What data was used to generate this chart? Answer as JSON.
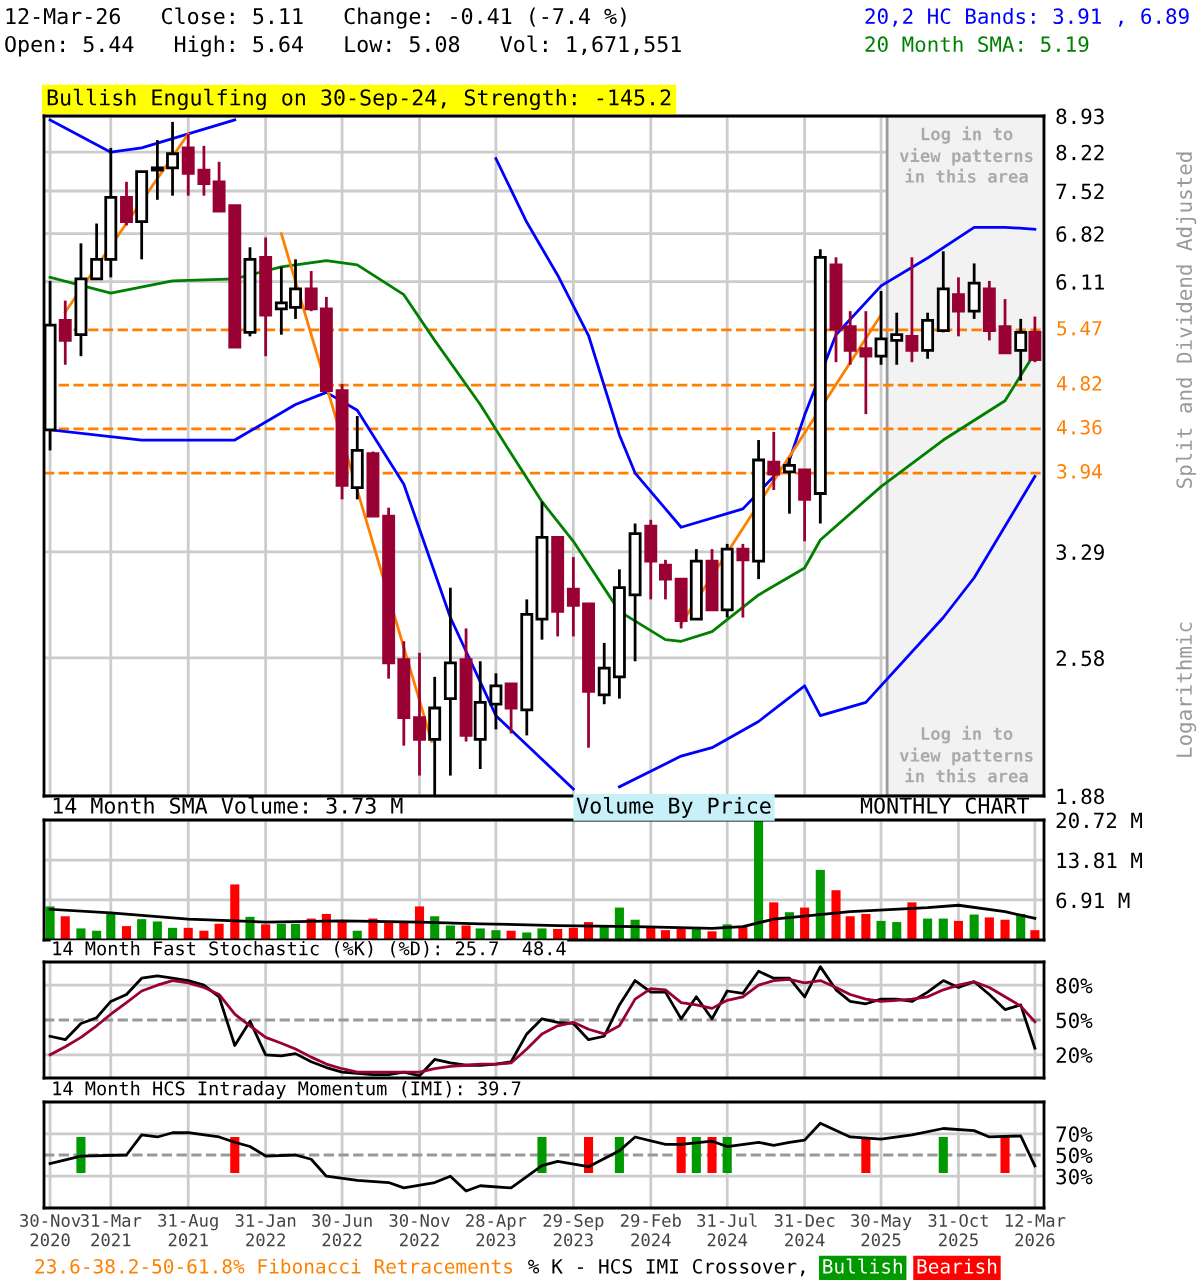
{
  "chart_data": [
    {
      "type": "candlestick",
      "title": "12-Mar-26   Close: 5.11   Change: -0.41 (-7.4 %)",
      "subtitle": "Open: 5.44   High: 5.64   Low: 5.08   Vol: 1,671,551",
      "ylabel": "Split and Dividend Adjusted",
      "annotations": [
        "Bullish Engulfing on 30-Sep-24, Strength: -145.2",
        "Logarithmic",
        "Log in to\nview patterns\nin this area",
        "23.6-38.2-50-61.8% Fibonacci Retracements"
      ],
      "x": [
        "2020-11",
        "2020-12",
        "2021-01",
        "2021-02",
        "2021-03",
        "2021-04",
        "2021-05",
        "2021-06",
        "2021-07",
        "2021-08",
        "2021-09",
        "2021-10",
        "2021-11",
        "2021-12",
        "2022-01",
        "2022-02",
        "2022-03",
        "2022-04",
        "2022-05",
        "2022-06",
        "2022-07",
        "2022-08",
        "2022-09",
        "2022-10",
        "2022-11",
        "2022-12",
        "2023-01",
        "2023-02",
        "2023-03",
        "2023-04",
        "2023-05",
        "2023-06",
        "2023-07",
        "2023-08",
        "2023-09",
        "2023-10",
        "2023-11",
        "2023-12",
        "2024-01",
        "2024-02",
        "2024-03",
        "2024-04",
        "2024-05",
        "2024-06",
        "2024-07",
        "2024-08",
        "2024-09",
        "2024-10",
        "2024-11",
        "2024-12",
        "2025-01",
        "2025-02",
        "2025-03",
        "2025-04",
        "2025-05",
        "2025-06",
        "2025-07",
        "2025-08",
        "2025-09",
        "2025-10",
        "2025-11",
        "2025-12",
        "2026-01",
        "2026-02",
        "2026-03"
      ],
      "ohlc": [
        [
          4.35,
          6.12,
          4.15,
          5.53
        ],
        [
          5.59,
          5.85,
          5.05,
          5.34
        ],
        [
          5.41,
          6.67,
          5.15,
          6.15
        ],
        [
          6.15,
          6.98,
          6.15,
          6.43
        ],
        [
          6.43,
          8.3,
          6.17,
          7.41
        ],
        [
          7.41,
          7.68,
          6.95,
          7.01
        ],
        [
          7.01,
          7.86,
          6.43,
          7.86
        ],
        [
          7.89,
          8.45,
          7.37,
          7.93
        ],
        [
          7.93,
          8.81,
          7.44,
          8.19
        ],
        [
          8.3,
          8.57,
          7.44,
          7.83
        ],
        [
          7.89,
          8.34,
          7.44,
          7.65
        ],
        [
          7.68,
          8.04,
          7.18,
          7.18
        ],
        [
          7.27,
          7.27,
          5.26,
          5.26
        ],
        [
          5.44,
          6.61,
          5.39,
          6.43
        ],
        [
          6.46,
          6.76,
          5.15,
          5.66
        ],
        [
          5.74,
          6.32,
          5.41,
          5.82
        ],
        [
          5.76,
          6.43,
          5.61,
          6.01
        ],
        [
          6.01,
          6.26,
          5.71,
          5.74
        ],
        [
          5.74,
          5.9,
          4.76,
          4.76
        ],
        [
          4.76,
          4.83,
          3.71,
          3.83
        ],
        [
          3.81,
          4.49,
          3.71,
          4.15
        ],
        [
          4.12,
          4.14,
          3.57,
          3.57
        ],
        [
          3.57,
          3.64,
          2.46,
          2.55
        ],
        [
          2.57,
          2.68,
          2.11,
          2.25
        ],
        [
          2.25,
          2.61,
          1.97,
          2.14
        ],
        [
          2.14,
          2.47,
          1.88,
          2.3
        ],
        [
          2.35,
          3.03,
          1.97,
          2.55
        ],
        [
          2.57,
          2.76,
          2.13,
          2.16
        ],
        [
          2.14,
          2.56,
          2.0,
          2.33
        ],
        [
          2.32,
          2.49,
          2.19,
          2.42
        ],
        [
          2.43,
          2.43,
          2.17,
          2.3
        ],
        [
          2.29,
          2.95,
          2.16,
          2.85
        ],
        [
          2.82,
          3.69,
          2.69,
          3.4
        ],
        [
          3.4,
          3.4,
          2.71,
          2.87
        ],
        [
          3.02,
          3.25,
          2.71,
          2.91
        ],
        [
          2.92,
          2.92,
          2.1,
          2.39
        ],
        [
          2.37,
          2.67,
          2.32,
          2.52
        ],
        [
          2.47,
          3.16,
          2.35,
          3.03
        ],
        [
          2.98,
          3.51,
          2.56,
          3.43
        ],
        [
          3.49,
          3.54,
          2.95,
          3.22
        ],
        [
          3.19,
          3.23,
          2.95,
          3.09
        ],
        [
          3.09,
          3.09,
          2.76,
          2.81
        ],
        [
          2.82,
          3.31,
          2.82,
          3.22
        ],
        [
          3.22,
          3.31,
          2.88,
          2.88
        ],
        [
          2.88,
          3.35,
          2.83,
          3.31
        ],
        [
          3.31,
          3.35,
          2.83,
          3.23
        ],
        [
          3.22,
          4.25,
          3.09,
          4.06
        ],
        [
          4.04,
          4.33,
          3.79,
          3.93
        ],
        [
          3.95,
          4.08,
          3.59,
          4.01
        ],
        [
          3.97,
          3.97,
          3.37,
          3.71
        ],
        [
          3.76,
          6.58,
          3.51,
          6.46
        ],
        [
          6.35,
          6.46,
          5.08,
          5.48
        ],
        [
          5.51,
          5.71,
          5.05,
          5.22
        ],
        [
          5.24,
          5.71,
          4.51,
          5.15
        ],
        [
          5.15,
          5.98,
          5.05,
          5.36
        ],
        [
          5.34,
          5.69,
          5.05,
          5.41
        ],
        [
          5.39,
          6.46,
          5.08,
          5.22
        ],
        [
          5.22,
          5.69,
          5.12,
          5.59
        ],
        [
          5.46,
          6.55,
          5.44,
          6.01
        ],
        [
          5.93,
          6.17,
          5.39,
          5.71
        ],
        [
          5.71,
          6.37,
          5.61,
          6.09
        ],
        [
          6.01,
          6.12,
          5.34,
          5.46
        ],
        [
          5.51,
          5.87,
          5.19,
          5.19
        ],
        [
          5.22,
          5.61,
          4.87,
          5.44
        ],
        [
          5.44,
          5.64,
          5.08,
          5.11
        ]
      ],
      "colors": [
        "#ffffff",
        "#990033",
        "#ffffff",
        "#ffffff",
        "#ffffff",
        "#990033",
        "#ffffff",
        "#ffffff",
        "#ffffff",
        "#990033",
        "#990033",
        "#990033",
        "#990033",
        "#ffffff",
        "#990033",
        "#ffffff",
        "#ffffff",
        "#990033",
        "#990033",
        "#990033",
        "#ffffff",
        "#990033",
        "#990033",
        "#990033",
        "#990033",
        "#ffffff",
        "#ffffff",
        "#990033",
        "#ffffff",
        "#ffffff",
        "#990033",
        "#ffffff",
        "#ffffff",
        "#990033",
        "#990033",
        "#990033",
        "#ffffff",
        "#ffffff",
        "#ffffff",
        "#990033",
        "#990033",
        "#990033",
        "#ffffff",
        "#990033",
        "#ffffff",
        "#990033",
        "#ffffff",
        "#990033",
        "#ffffff",
        "#990033",
        "#ffffff",
        "#990033",
        "#990033",
        "#990033",
        "#ffffff",
        "#ffffff",
        "#990033",
        "#ffffff",
        "#ffffff",
        "#990033",
        "#ffffff",
        "#990033",
        "#990033",
        "#ffffff",
        "#990033"
      ],
      "series": [
        {
          "type": "line",
          "name": "20,2 HC Bands: 3.91 , 6.89",
          "color": "#0000ff",
          "x": [
            "2020-11",
            "2021-03",
            "2021-05",
            "2021-11",
            "2021-12",
            "2023-02",
            "2023-04",
            "2023-06",
            "2023-08",
            "2023-10",
            "2023-12",
            "2024-01",
            "2024-04",
            "2024-08",
            "2024-11",
            "2024-12",
            "2025-02",
            "2025-05",
            "2025-08",
            "2025-11",
            "2026-01",
            "2026-03"
          ],
          "values": [
            8.85,
            8.22,
            8.3,
            8.85,
            null,
            null,
            8.1,
            7.0,
            6.2,
            5.4,
            4.3,
            3.94,
            3.48,
            3.63,
            4.06,
            4.5,
            5.41,
            6.05,
            6.45,
            6.92,
            6.92,
            6.89
          ]
        },
        {
          "type": "line",
          "color": "#0000ff",
          "x": [
            "2020-11",
            "2021-05",
            "2021-11",
            "2022-03",
            "2022-05",
            "2022-07",
            "2022-10",
            "2023-01",
            "2023-04",
            "2023-09",
            "2023-10",
            "2023-11",
            "2023-12",
            "2024-04",
            "2024-06",
            "2024-09",
            "2024-12",
            "2025-01",
            "2025-04",
            "2025-09",
            "2025-11",
            "2026-03"
          ],
          "values": [
            4.35,
            4.25,
            4.25,
            4.61,
            4.74,
            4.55,
            3.84,
            2.83,
            2.26,
            1.91,
            null,
            null,
            1.92,
            2.06,
            2.1,
            2.23,
            2.42,
            2.26,
            2.33,
            2.83,
            3.1,
            3.91
          ]
        },
        {
          "type": "line",
          "name": "20 Month SMA: 5.19",
          "color": "#008000",
          "x": [
            "2020-11",
            "2021-03",
            "2021-07",
            "2021-11",
            "2022-02",
            "2022-05",
            "2022-07",
            "2022-10",
            "2022-12",
            "2023-03",
            "2023-05",
            "2023-07",
            "2023-09",
            "2023-12",
            "2024-03",
            "2024-04",
            "2024-06",
            "2024-09",
            "2024-12",
            "2025-01",
            "2025-05",
            "2025-09",
            "2026-01",
            "2026-03"
          ],
          "values": [
            6.17,
            5.95,
            6.12,
            6.15,
            6.32,
            6.41,
            6.35,
            5.93,
            5.34,
            4.61,
            4.12,
            3.69,
            3.37,
            2.87,
            2.69,
            2.68,
            2.74,
            2.98,
            3.17,
            3.38,
            3.82,
            4.25,
            4.65,
            5.19
          ]
        },
        {
          "type": "line",
          "color": "#ff8000",
          "x": [
            "2020-12",
            "2021-08"
          ],
          "values": [
            5.7,
            8.57
          ]
        },
        {
          "type": "line",
          "color": "#ff8000",
          "x": [
            "2022-02",
            "2022-11-25"
          ],
          "values": [
            6.82,
            2.13
          ]
        },
        {
          "type": "line",
          "color": "#ff8000",
          "x": [
            "2024-04",
            "2025-05"
          ],
          "values": [
            2.79,
            5.66
          ]
        }
      ],
      "ref_lines": [
        {
          "axis": "y",
          "value": 5.47,
          "label": "5.47",
          "color": "#ff8000",
          "line_style": "dashed"
        },
        {
          "axis": "y",
          "value": 4.82,
          "label": "4.82",
          "color": "#ff8000",
          "line_style": "dashed"
        },
        {
          "axis": "y",
          "value": 4.36,
          "label": "4.36",
          "color": "#ff8000",
          "line_style": "dashed"
        },
        {
          "axis": "y",
          "value": 3.94,
          "label": "3.94",
          "color": "#ff8000",
          "line_style": "dashed"
        }
      ],
      "bands": [
        {
          "axis": "x",
          "from": "2025-05-13",
          "to": "2026-03-19",
          "label": "Log in to\nview patterns\nin this area",
          "color": "#f2f2f2"
        }
      ],
      "log": true,
      "ylim": [
        1.88,
        8.93
      ],
      "yticks": [
        1.88,
        2.58,
        3.29,
        6.11,
        6.82,
        7.52,
        8.22,
        8.93
      ],
      "xlim": [
        "2020-10-20",
        "2026-03-19"
      ],
      "xticks": [
        {
          "value": "2020-11",
          "label": null
        },
        {
          "value": "2021-03",
          "label": null
        },
        {
          "value": "2021-08",
          "label": null
        },
        {
          "value": "2022-01",
          "label": null
        },
        {
          "value": "2022-06",
          "label": null
        },
        {
          "value": "2022-11",
          "label": null
        },
        {
          "value": "2023-04",
          "label": null
        },
        {
          "value": "2023-09",
          "label": null
        },
        {
          "value": "2024-02",
          "label": null
        },
        {
          "value": "2024-07",
          "label": null
        },
        {
          "value": "2024-12",
          "label": null
        },
        {
          "value": "2025-05",
          "label": null
        },
        {
          "value": "2025-10",
          "label": null
        },
        {
          "value": "2026-03",
          "label": null
        }
      ],
      "tick_labels": "y",
      "grid": true,
      "legend": "top right"
    },
    {
      "type": "bar",
      "annotations": [
        "Volume By Price",
        "MONTHLY CHART"
      ],
      "x": [
        "2020-11",
        "2020-12",
        "2021-01",
        "2021-02",
        "2021-03",
        "2021-04",
        "2021-05",
        "2021-06",
        "2021-07",
        "2021-08",
        "2021-09",
        "2021-10",
        "2021-11",
        "2021-12",
        "2022-01",
        "2022-02",
        "2022-03",
        "2022-04",
        "2022-05",
        "2022-06",
        "2022-07",
        "2022-08",
        "2022-09",
        "2022-10",
        "2022-11",
        "2022-12",
        "2023-01",
        "2023-02",
        "2023-03",
        "2023-04",
        "2023-05",
        "2023-06",
        "2023-07",
        "2023-08",
        "2023-09",
        "2023-10",
        "2023-11",
        "2023-12",
        "2024-01",
        "2024-02",
        "2024-03",
        "2024-04",
        "2024-05",
        "2024-06",
        "2024-07",
        "2024-08",
        "2024-09",
        "2024-10",
        "2024-11",
        "2024-12",
        "2025-01",
        "2025-02",
        "2025-03",
        "2025-04",
        "2025-05",
        "2025-06",
        "2025-07",
        "2025-08",
        "2025-09",
        "2025-10",
        "2025-11",
        "2025-12",
        "2026-01",
        "2026-02",
        "2026-03"
      ],
      "series": [
        {
          "type": "bar",
          "values": [
            5.8,
            4.1,
            2.0,
            1.6,
            4.8,
            2.4,
            3.6,
            3.2,
            2.1,
            2.1,
            1.6,
            2.8,
            9.6,
            4.0,
            2.7,
            2.8,
            2.8,
            3.7,
            4.5,
            3.2,
            1.6,
            3.7,
            3.2,
            3.2,
            5.8,
            4.1,
            2.5,
            2.5,
            2.0,
            1.7,
            1.6,
            1.3,
            2.0,
            1.9,
            2.1,
            3.1,
            2.5,
            5.6,
            3.5,
            2.3,
            1.7,
            2.1,
            2.1,
            1.5,
            2.7,
            2.4,
            20.7,
            6.5,
            4.8,
            5.6,
            12.1,
            8.6,
            4.1,
            4.5,
            3.3,
            3.1,
            6.5,
            3.7,
            3.7,
            3.3,
            4.4,
            3.9,
            3.5,
            4.5,
            1.7
          ],
          "colors": [
            "#009900",
            "#ff0000",
            "#009900",
            "#009900",
            "#009900",
            "#ff0000",
            "#009900",
            "#009900",
            "#009900",
            "#ff0000",
            "#ff0000",
            "#ff0000",
            "#ff0000",
            "#009900",
            "#ff0000",
            "#009900",
            "#009900",
            "#ff0000",
            "#ff0000",
            "#ff0000",
            "#009900",
            "#ff0000",
            "#ff0000",
            "#ff0000",
            "#ff0000",
            "#009900",
            "#009900",
            "#ff0000",
            "#009900",
            "#009900",
            "#ff0000",
            "#009900",
            "#009900",
            "#ff0000",
            "#ff0000",
            "#ff0000",
            "#009900",
            "#009900",
            "#009900",
            "#ff0000",
            "#ff0000",
            "#ff0000",
            "#009900",
            "#ff0000",
            "#009900",
            "#ff0000",
            "#009900",
            "#ff0000",
            "#009900",
            "#ff0000",
            "#009900",
            "#ff0000",
            "#ff0000",
            "#ff0000",
            "#009900",
            "#009900",
            "#ff0000",
            "#009900",
            "#009900",
            "#ff0000",
            "#009900",
            "#ff0000",
            "#ff0000",
            "#009900",
            "#ff0000"
          ]
        },
        {
          "type": "line",
          "name": "14 Month SMA Volume: 3.73 M",
          "color": "#000000",
          "x": [
            "2020-11",
            "2021-03",
            "2021-08",
            "2022-01",
            "2022-06",
            "2022-11",
            "2023-03",
            "2023-08",
            "2024-01",
            "2024-06",
            "2024-08",
            "2024-10",
            "2025-03",
            "2025-08",
            "2025-10",
            "2026-01",
            "2026-03"
          ],
          "values": [
            5.3,
            4.7,
            3.6,
            3.1,
            3.3,
            3.1,
            2.8,
            2.5,
            2.3,
            2.0,
            2.3,
            3.6,
            4.9,
            5.6,
            6.0,
            4.9,
            3.73
          ]
        }
      ],
      "ylim": [
        0,
        20.72
      ],
      "yticks": [
        {
          "value": 6.91,
          "label": "6.91 M"
        },
        {
          "value": 13.81,
          "label": "13.81 M"
        },
        {
          "value": 20.72,
          "label": "20.72 M"
        }
      ],
      "xlim": [
        "2020-10-20",
        "2026-03-19"
      ],
      "xticks": [
        {
          "value": "2020-11",
          "label": null
        },
        {
          "value": "2021-03",
          "label": null
        },
        {
          "value": "2021-08",
          "label": null
        },
        {
          "value": "2022-01",
          "label": null
        },
        {
          "value": "2022-06",
          "label": null
        },
        {
          "value": "2022-11",
          "label": null
        },
        {
          "value": "2023-04",
          "label": null
        },
        {
          "value": "2023-09",
          "label": null
        },
        {
          "value": "2024-02",
          "label": null
        },
        {
          "value": "2024-07",
          "label": null
        },
        {
          "value": "2024-12",
          "label": null
        },
        {
          "value": "2025-05",
          "label": null
        },
        {
          "value": "2025-10",
          "label": null
        },
        {
          "value": "2026-03",
          "label": null
        }
      ],
      "tick_labels": "y",
      "grid": true,
      "legend": "top left"
    },
    {
      "type": "line",
      "title": "14 Month Fast Stochastic (%K) (%D): 25.7  48.4",
      "x": [
        "2020-11",
        "2020-12",
        "2021-01",
        "2021-02",
        "2021-03",
        "2021-04",
        "2021-05",
        "2021-06",
        "2021-07",
        "2021-08",
        "2021-09",
        "2021-10",
        "2021-11",
        "2021-12",
        "2022-01",
        "2022-02",
        "2022-03",
        "2022-04",
        "2022-05",
        "2022-06",
        "2022-07",
        "2022-08",
        "2022-09",
        "2022-10",
        "2022-11",
        "2022-12",
        "2023-01",
        "2023-02",
        "2023-03",
        "2023-04",
        "2023-05",
        "2023-06",
        "2023-07",
        "2023-08",
        "2023-09",
        "2023-10",
        "2023-11",
        "2023-12",
        "2024-01",
        "2024-02",
        "2024-03",
        "2024-04",
        "2024-05",
        "2024-06",
        "2024-07",
        "2024-08",
        "2024-09",
        "2024-10",
        "2024-11",
        "2024-12",
        "2025-01",
        "2025-02",
        "2025-03",
        "2025-04",
        "2025-05",
        "2025-06",
        "2025-07",
        "2025-08",
        "2025-09",
        "2025-10",
        "2025-11",
        "2025-12",
        "2026-01",
        "2026-02",
        "2026-03"
      ],
      "series": [
        {
          "type": "line",
          "color": "#000000",
          "values": [
            36,
            33,
            47,
            52,
            66,
            72,
            86,
            88,
            86,
            84,
            80,
            70,
            28,
            49,
            20,
            19,
            21,
            14,
            9,
            5,
            4,
            3,
            3,
            5,
            2,
            16,
            13,
            11,
            11,
            12,
            14,
            38,
            51,
            48,
            47,
            33,
            36,
            63,
            84,
            74,
            74,
            51,
            70,
            51,
            75,
            73,
            92,
            86,
            86,
            70,
            96,
            76,
            66,
            64,
            68,
            68,
            66,
            74,
            84,
            78,
            83,
            72,
            59,
            63,
            25.7
          ]
        },
        {
          "type": "line",
          "color": "#990033",
          "values": [
            20,
            27,
            35,
            45,
            55,
            65,
            75,
            80,
            84,
            82,
            78,
            72,
            55,
            45,
            35,
            30,
            25,
            18,
            12,
            8,
            5,
            5,
            5,
            5,
            5,
            8,
            10,
            11,
            12,
            12,
            13,
            25,
            38,
            45,
            48,
            42,
            38,
            45,
            68,
            77,
            76,
            65,
            63,
            60,
            67,
            70,
            80,
            84,
            85,
            82,
            84,
            78,
            72,
            68,
            66,
            67,
            68,
            70,
            76,
            80,
            83,
            78,
            70,
            62,
            48.4
          ]
        }
      ],
      "ref_lines": [
        {
          "axis": "y",
          "value": 50,
          "color": "#999999",
          "line_style": "dashed"
        }
      ],
      "ylim": [
        0,
        100
      ],
      "yticks": [
        {
          "value": 20,
          "label": "20%"
        },
        {
          "value": 50,
          "label": "50%"
        },
        {
          "value": 80,
          "label": "80%"
        }
      ],
      "xlim": [
        "2020-10-20",
        "2026-03-19"
      ],
      "xticks": [
        {
          "value": "2020-11",
          "label": null
        },
        {
          "value": "2021-03",
          "label": null
        },
        {
          "value": "2021-08",
          "label": null
        },
        {
          "value": "2022-01",
          "label": null
        },
        {
          "value": "2022-06",
          "label": null
        },
        {
          "value": "2022-11",
          "label": null
        },
        {
          "value": "2023-04",
          "label": null
        },
        {
          "value": "2023-09",
          "label": null
        },
        {
          "value": "2024-02",
          "label": null
        },
        {
          "value": "2024-07",
          "label": null
        },
        {
          "value": "2024-12",
          "label": null
        },
        {
          "value": "2025-05",
          "label": null
        },
        {
          "value": "2025-10",
          "label": null
        },
        {
          "value": "2026-03",
          "label": null
        }
      ],
      "tick_labels": "y",
      "grid": true
    },
    {
      "type": "line",
      "title": "14 Month HCS Intraday Momentum (IMI): 39.7",
      "legend_title": "% K - HCS IMI Crossover,",
      "series": [
        {
          "type": "line",
          "color": "#000000",
          "x": [
            "2020-11",
            "2021-01",
            "2021-04",
            "2021-05",
            "2021-06",
            "2021-07",
            "2021-08",
            "2021-10",
            "2021-11",
            "2021-12",
            "2022-01",
            "2022-03",
            "2022-04",
            "2022-05",
            "2022-07",
            "2022-09",
            "2022-10",
            "2022-12",
            "2023-01",
            "2023-02",
            "2023-03",
            "2023-05",
            "2023-07",
            "2023-08",
            "2023-10",
            "2023-12",
            "2024-01",
            "2024-03",
            "2024-04",
            "2024-06",
            "2024-07",
            "2024-09",
            "2024-10",
            "2024-11",
            "2024-12",
            "2025-01",
            "2025-03",
            "2025-05",
            "2025-07",
            "2025-09",
            "2025-11",
            "2025-12",
            "2026-02",
            "2026-03"
          ],
          "values": [
            42,
            49,
            50,
            69,
            67,
            71,
            71,
            67,
            62,
            58,
            49,
            50,
            46,
            30,
            26,
            24,
            19,
            24,
            30,
            16,
            21,
            19,
            40,
            44,
            39,
            54,
            67,
            60,
            60,
            63,
            58,
            62,
            59,
            62,
            64,
            80,
            67,
            65,
            69,
            75,
            73,
            67,
            68,
            39.7
          ]
        },
        {
          "type": "bar",
          "name": "Bullish",
          "color": "#009900",
          "x": [
            "2021-01",
            "2023-07",
            "2023-12",
            "2024-05",
            "2024-07",
            "2025-09"
          ],
          "base": [
            33,
            33,
            33,
            33,
            33,
            33
          ],
          "values": [
            34,
            34,
            34,
            34,
            34,
            34
          ]
        },
        {
          "type": "bar",
          "name": "Bearish",
          "color": "#ff0000",
          "x": [
            "2021-11",
            "2023-10",
            "2024-04",
            "2024-06",
            "2025-04",
            "2026-01"
          ],
          "base": [
            33,
            33,
            33,
            33,
            33,
            33
          ],
          "values": [
            34,
            34,
            34,
            34,
            34,
            34
          ]
        }
      ],
      "ref_lines": [
        {
          "axis": "y",
          "value": 50,
          "color": "#999999",
          "line_style": "dashed"
        }
      ],
      "ylim": [
        0,
        100
      ],
      "yticks": [
        {
          "value": 30,
          "label": "30%"
        },
        {
          "value": 50,
          "label": "50%"
        },
        {
          "value": 70,
          "label": "70%"
        }
      ],
      "xlim": [
        "2020-10-20",
        "2026-03-19"
      ],
      "xticks": [
        {
          "value": "2020-11",
          "label": "30-Nov\n2020"
        },
        {
          "value": "2021-03",
          "label": "31-Mar\n2021"
        },
        {
          "value": "2021-08",
          "label": "31-Aug\n2021"
        },
        {
          "value": "2022-01",
          "label": "31-Jan\n2022"
        },
        {
          "value": "2022-06",
          "label": "30-Jun\n2022"
        },
        {
          "value": "2022-11",
          "label": "30-Nov\n2022"
        },
        {
          "value": "2023-04",
          "label": "28-Apr\n2023"
        },
        {
          "value": "2023-09",
          "label": "29-Sep\n2023"
        },
        {
          "value": "2024-02",
          "label": "29-Feb\n2024"
        },
        {
          "value": "2024-07",
          "label": "31-Jul\n2024"
        },
        {
          "value": "2024-12",
          "label": "31-Dec\n2024"
        },
        {
          "value": "2025-05",
          "label": "30-May\n2025"
        },
        {
          "value": "2025-10",
          "label": "31-Oct\n2025"
        },
        {
          "value": "2026-03",
          "label": "12-Mar\n2026"
        }
      ],
      "grid": true,
      "legend": "bottom"
    }
  ]
}
